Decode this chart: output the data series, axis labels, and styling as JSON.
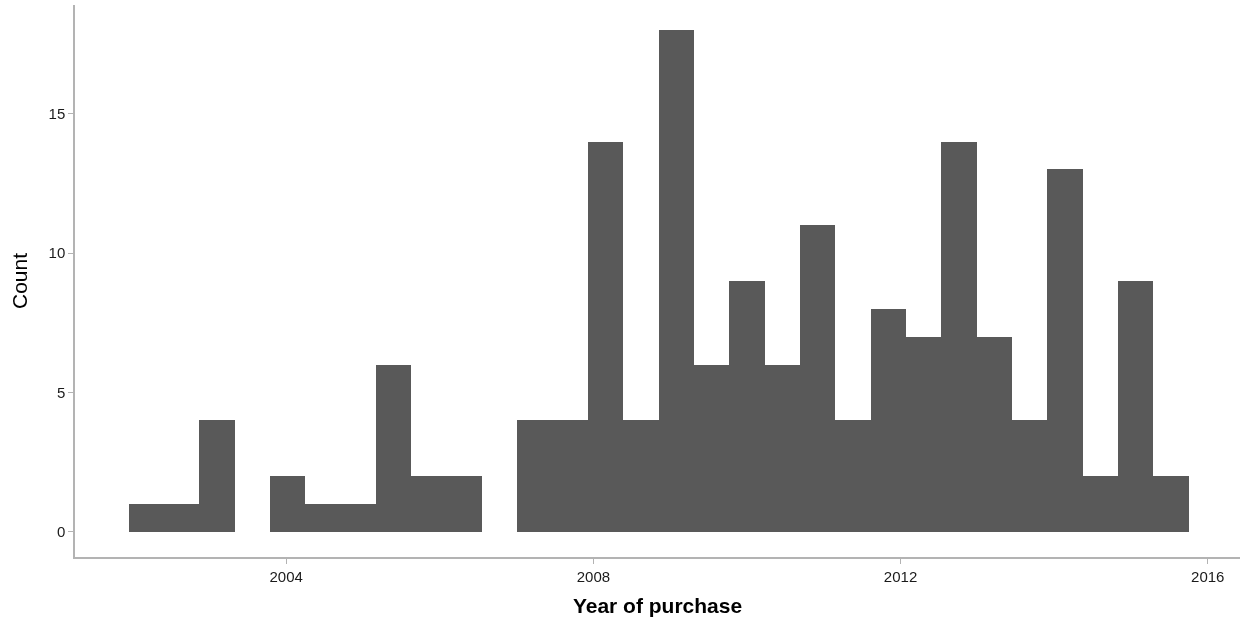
{
  "chart_data": {
    "type": "histogram",
    "xlabel": "Year of purchase",
    "ylabel": "Count",
    "bins": [
      2001.95,
      2002.41,
      2002.87,
      2003.33,
      2003.79,
      2004.25,
      2004.71,
      2005.17,
      2005.63,
      2006.09,
      2006.55,
      2007.01,
      2007.47,
      2007.93,
      2008.39,
      2008.85,
      2009.31,
      2009.77,
      2010.23,
      2010.69,
      2011.15,
      2011.61,
      2012.07,
      2012.53,
      2012.99,
      2013.45,
      2013.91,
      2014.37,
      2014.83,
      2015.29,
      2015.75
    ],
    "values": [
      1,
      1,
      4,
      0,
      2,
      1,
      1,
      6,
      2,
      2,
      0,
      4,
      4,
      14,
      4,
      18,
      6,
      9,
      6,
      11,
      4,
      8,
      7,
      14,
      7,
      4,
      13,
      2,
      9,
      2
    ],
    "color": "#595959",
    "xlim": [
      2001.25,
      2016.42
    ],
    "xticks": [
      2004,
      2008,
      2012,
      2016
    ],
    "ylim": [
      -0.9,
      18.9
    ],
    "yticks": [
      0,
      5,
      10,
      15
    ],
    "grid": false
  }
}
